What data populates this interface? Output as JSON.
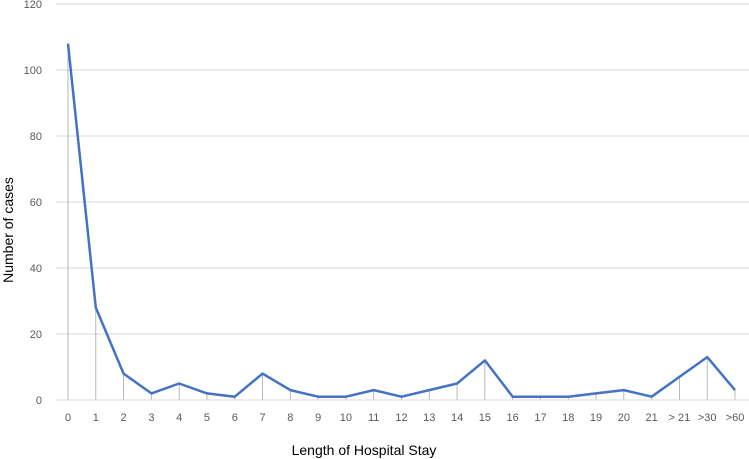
{
  "chart_data": {
    "type": "line",
    "title": "",
    "xlabel": "Length of Hospital Stay",
    "ylabel": "Number of cases",
    "categories": [
      "0",
      "1",
      "2",
      "3",
      "4",
      "5",
      "6",
      "7",
      "8",
      "9",
      "10",
      "11",
      "12",
      "13",
      "14",
      "15",
      "16",
      "17",
      "18",
      "19",
      "20",
      "21",
      "> 21",
      ">30",
      ">60"
    ],
    "series": [
      {
        "values": [
          108,
          28,
          8,
          2,
          5,
          2,
          1,
          8,
          3,
          1,
          1,
          3,
          1,
          3,
          5,
          12,
          1,
          1,
          1,
          2,
          3,
          1,
          7,
          13,
          3
        ]
      }
    ],
    "ylim": [
      0,
      120
    ],
    "yticks": [
      0,
      20,
      40,
      60,
      80,
      100,
      120
    ],
    "grid": true,
    "drop_lines": true,
    "colors": {
      "line": "#4472C4",
      "grid": "#D9D9D9",
      "drop_line": "#A6A6A6",
      "tick_text": "#595959"
    }
  }
}
